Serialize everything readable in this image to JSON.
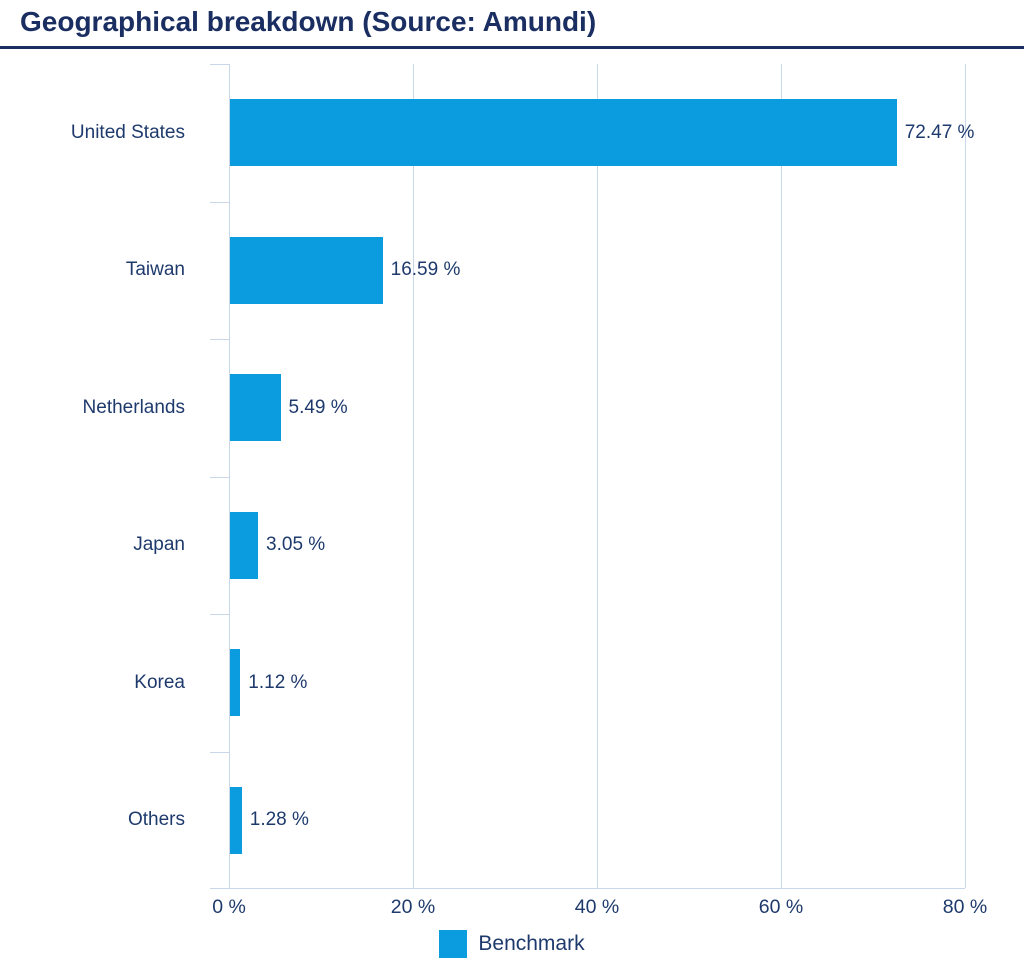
{
  "title": "Geographical breakdown (Source: Amundi)",
  "colors": {
    "bar": "#0A9CDE",
    "heading": "#1A2E62",
    "text": "#1E3A6D",
    "grid": "#C7D7E8"
  },
  "chart_data": {
    "type": "bar",
    "orientation": "horizontal",
    "title": "Geographical breakdown (Source: Amundi)",
    "categories": [
      "United States",
      "Taiwan",
      "Netherlands",
      "Japan",
      "Korea",
      "Others"
    ],
    "series": [
      {
        "name": "Benchmark",
        "values": [
          72.47,
          16.59,
          5.49,
          3.05,
          1.12,
          1.28
        ]
      }
    ],
    "value_labels": [
      "72.47 %",
      "16.59 %",
      "5.49 %",
      "3.05 %",
      "1.12 %",
      "1.28 %"
    ],
    "xlim": [
      0,
      80
    ],
    "xticks": [
      0,
      20,
      40,
      60,
      80
    ],
    "xtick_labels": [
      "0 %",
      "20 %",
      "40 %",
      "60 %",
      "80 %"
    ],
    "grid": true,
    "legend_position": "bottom"
  },
  "legend": {
    "label": "Benchmark"
  }
}
